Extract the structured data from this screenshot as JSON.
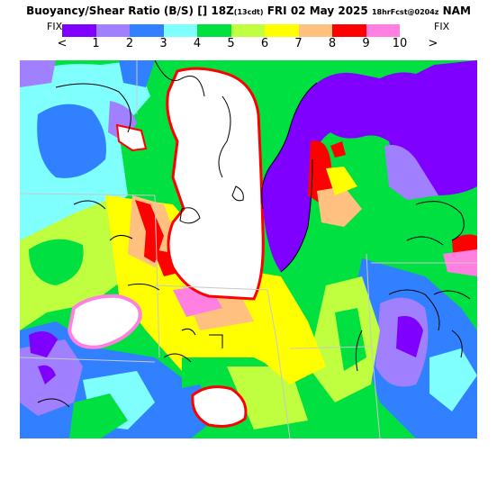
{
  "header": {
    "title_prefix": "Buoyancy/Shear Ratio (B/S)",
    "title_marker": "[]",
    "title_time": "18Z",
    "title_local": "(13cdt)",
    "title_date": "FRI 02 May 2025",
    "title_forecast": "18hrFcst@0204z",
    "title_model": "NAM"
  },
  "legend": {
    "fix_left": "FIX",
    "fix_right": "FIX",
    "arrow_left": "<",
    "arrow_right": ">",
    "tick_labels": [
      "1",
      "2",
      "3",
      "4",
      "5",
      "6",
      "7",
      "8",
      "9",
      "10"
    ],
    "colors": [
      "#8000ff",
      "#a080ff",
      "#3080ff",
      "#80ffff",
      "#00e040",
      "#c0ff40",
      "#ffff00",
      "#ffc080",
      "#ff0000",
      "#ff80e0"
    ]
  },
  "map": {
    "field": "Buoyancy/Shear Ratio (B/S)",
    "high_value_color": "#ffffff"
  }
}
